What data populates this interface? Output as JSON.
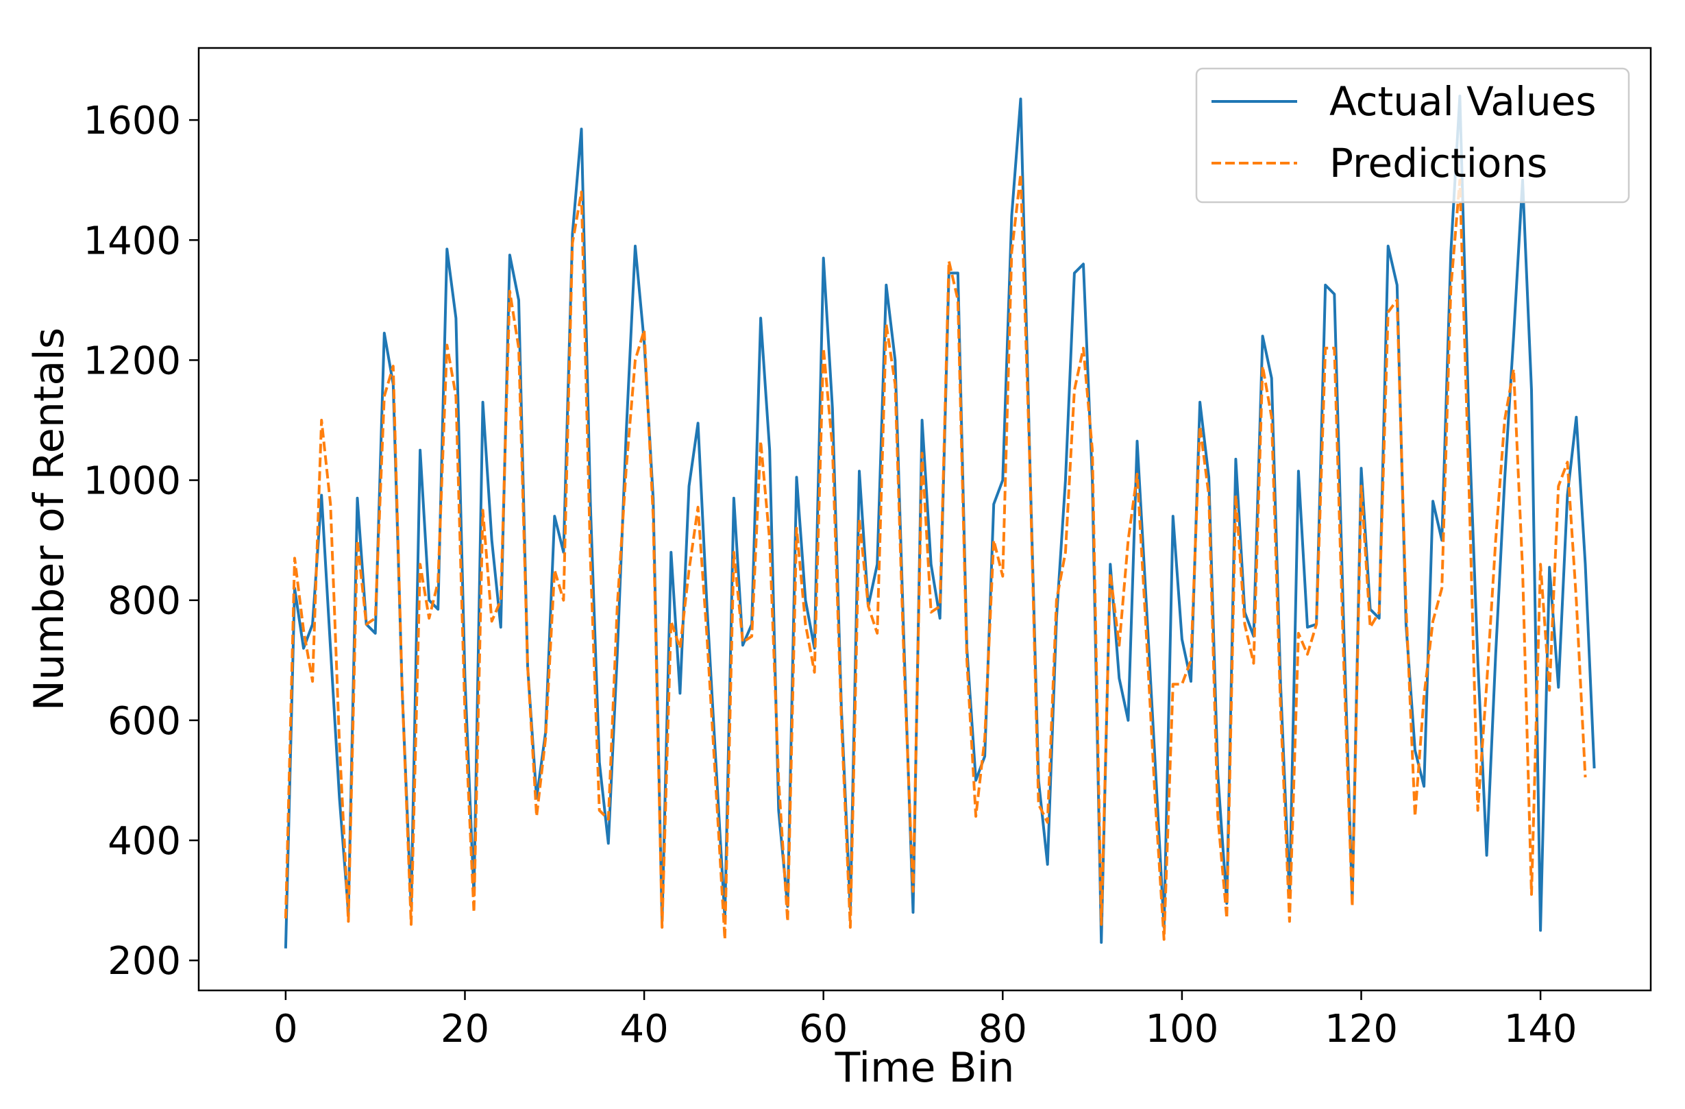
{
  "chart_data": {
    "type": "line",
    "title": "",
    "xlabel": "Time Bin",
    "ylabel": "Number of Rentals",
    "xlim": [
      -9.7,
      152.3
    ],
    "ylim": [
      150,
      1720
    ],
    "xticks": [
      0,
      20,
      40,
      60,
      80,
      100,
      120,
      140
    ],
    "yticks": [
      200,
      400,
      600,
      800,
      1000,
      1200,
      1400,
      1600
    ],
    "legend_position": "top-right",
    "grid": false,
    "series": [
      {
        "name": "Actual Values",
        "color": "#1f77b4",
        "style": "solid",
        "values": [
          220,
          820,
          720,
          760,
          975,
          720,
          470,
          280,
          970,
          760,
          745,
          1245,
          1160,
          650,
          290,
          1050,
          800,
          785,
          1385,
          1270,
          670,
          310,
          1130,
          900,
          755,
          1375,
          1300,
          690,
          470,
          580,
          940,
          880,
          1410,
          1585,
          960,
          530,
          395,
          710,
          1080,
          1390,
          1230,
          970,
          265,
          880,
          645,
          990,
          1095,
          790,
          530,
          270,
          970,
          725,
          760,
          1270,
          1050,
          450,
          290,
          1005,
          800,
          720,
          1370,
          1120,
          620,
          285,
          1015,
          790,
          860,
          1325,
          1200,
          720,
          280,
          1100,
          860,
          770,
          1345,
          1345,
          720,
          500,
          540,
          960,
          1000,
          1440,
          1635,
          1050,
          500,
          360,
          770,
          1000,
          1345,
          1360,
          1000,
          230,
          860,
          670,
          600,
          1065,
          800,
          530,
          255,
          940,
          735,
          665,
          1130,
          1005,
          510,
          295,
          1035,
          780,
          740,
          1240,
          1170,
          660,
          305,
          1015,
          755,
          760,
          1325,
          1310,
          780,
          300,
          1020,
          785,
          770,
          1390,
          1325,
          760,
          550,
          490,
          965,
          900,
          1380,
          1640,
          1100,
          700,
          375,
          710,
          1000,
          1240,
          1500,
          1150,
          250,
          855,
          655,
          975,
          1105,
          860,
          520
        ]
      },
      {
        "name": "Predictions",
        "color": "#ff7f0e",
        "style": "dashed",
        "values": [
          270,
          870,
          750,
          665,
          1100,
          960,
          560,
          265,
          900,
          760,
          770,
          1140,
          1190,
          650,
          260,
          860,
          770,
          830,
          1225,
          1140,
          610,
          280,
          950,
          765,
          800,
          1315,
          1220,
          690,
          440,
          570,
          850,
          800,
          1395,
          1480,
          870,
          450,
          435,
          790,
          1020,
          1200,
          1250,
          940,
          255,
          765,
          720,
          850,
          955,
          740,
          490,
          235,
          880,
          730,
          740,
          1065,
          900,
          500,
          265,
          920,
          760,
          680,
          1220,
          1055,
          600,
          255,
          935,
          790,
          745,
          1260,
          1160,
          690,
          315,
          1045,
          780,
          790,
          1365,
          1300,
          700,
          440,
          570,
          900,
          840,
          1380,
          1510,
          1040,
          460,
          430,
          800,
          880,
          1150,
          1220,
          1050,
          260,
          845,
          725,
          900,
          1010,
          750,
          470,
          235,
          660,
          660,
          700,
          1090,
          975,
          440,
          270,
          975,
          760,
          695,
          1190,
          1105,
          620,
          265,
          745,
          710,
          760,
          1220,
          1220,
          720,
          290,
          990,
          755,
          780,
          1280,
          1300,
          790,
          440,
          640,
          765,
          820,
          1320,
          1500,
          1000,
          450,
          660,
          900,
          1100,
          1185,
          850,
          310,
          860,
          650,
          990,
          1030,
          800,
          505
        ]
      }
    ]
  }
}
